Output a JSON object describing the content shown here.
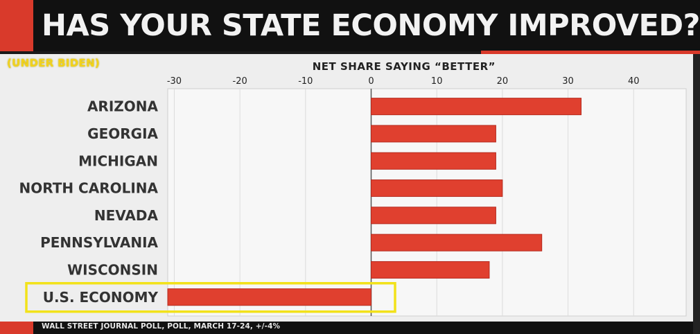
{
  "header": {
    "title": "HAS YOUR STATE ECONOMY IMPROVED?",
    "subtitle": "(UNDER BIDEN)"
  },
  "footer": {
    "source": "WALL STREET JOURNAL POLL, POLL, MARCH 17-24, +/-4%"
  },
  "colors": {
    "bar": "#e0402f",
    "accent": "#d93a2b",
    "highlight_box": "#f2e21a",
    "subtitle": "#f2d21a"
  },
  "chart_data": {
    "type": "bar",
    "orientation": "horizontal",
    "title": "HAS YOUR STATE ECONOMY IMPROVED?",
    "xlabel": "NET SHARE SAYING “BETTER”",
    "ylabel": "",
    "xlim": [
      -31,
      48
    ],
    "xticks": [
      -30,
      -20,
      -10,
      0,
      10,
      20,
      30,
      40
    ],
    "xtick_labels": [
      "-30",
      "-20",
      "-10",
      "0",
      "10",
      "20",
      "30",
      "40"
    ],
    "grid": true,
    "categories": [
      "ARIZONA",
      "GEORGIA",
      "MICHIGAN",
      "NORTH CAROLINA",
      "NEVADA",
      "PENNSYLVANIA",
      "WISCONSIN",
      "U.S. ECONOMY"
    ],
    "values": [
      32,
      19,
      19,
      20,
      19,
      26,
      18,
      -31
    ],
    "highlighted_category": "U.S. ECONOMY"
  }
}
